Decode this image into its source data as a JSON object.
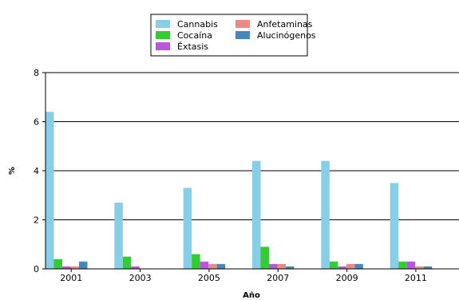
{
  "chart_data": {
    "type": "bar",
    "xlabel": "Año",
    "ylabel": "%",
    "ylim": [
      0,
      8
    ],
    "yticks": [
      0,
      2,
      4,
      6,
      8
    ],
    "grid": true,
    "legend_position": "top-center",
    "categories": [
      "2001",
      "2003",
      "2005",
      "2007",
      "2009",
      "2011"
    ],
    "series": [
      {
        "name": "Cannabis",
        "color": "#87CEE6",
        "values": [
          6.4,
          2.7,
          3.3,
          4.4,
          4.4,
          3.5
        ]
      },
      {
        "name": "Cocaína",
        "color": "#33CC33",
        "values": [
          0.4,
          0.5,
          0.6,
          0.9,
          0.3,
          0.3
        ]
      },
      {
        "name": "Éxtasis",
        "color": "#BB55DD",
        "values": [
          0.1,
          0.1,
          0.3,
          0.2,
          0.1,
          0.3
        ]
      },
      {
        "name": "Anfetaminas",
        "color": "#EE8888",
        "values": [
          0.1,
          0.0,
          0.2,
          0.2,
          0.2,
          0.1
        ]
      },
      {
        "name": "Alucinógenos",
        "color": "#4488BB",
        "values": [
          0.3,
          0.0,
          0.2,
          0.1,
          0.2,
          0.1
        ]
      }
    ]
  }
}
